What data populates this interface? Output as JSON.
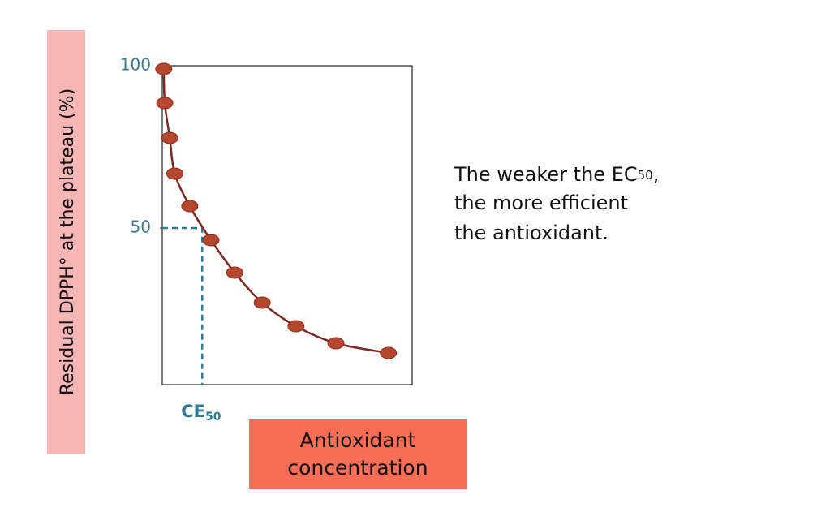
{
  "chart_data": {
    "type": "scatter",
    "y_label": "Residual DPPH° at the plateau (%)",
    "x_label": "Antioxidant concentration",
    "x": [
      0.6,
      1,
      3,
      5,
      11,
      19.5,
      29,
      40,
      53.5,
      69.5,
      90.5
    ],
    "series": [
      {
        "color": "#b5472f",
        "values": [
          99,
          88.5,
          77.75,
          66.75,
          56.75,
          46.25,
          36.25,
          27,
          19.75,
          14.5,
          11.5
        ]
      }
    ],
    "curve_color": "#7a2820",
    "xlim": [
      0,
      100
    ],
    "ylim": [
      0,
      100
    ],
    "yticks": [
      50,
      100
    ],
    "ec50_marker": {
      "x": 16,
      "y": 50,
      "label": "CE",
      "label_sub": "50",
      "color": "#2f7a8e"
    },
    "note": {
      "line1": "The weaker the EC",
      "line1_sub": "50",
      "line1_end": ",",
      "line2": "the more efficient",
      "line3": "the antioxidant."
    }
  }
}
